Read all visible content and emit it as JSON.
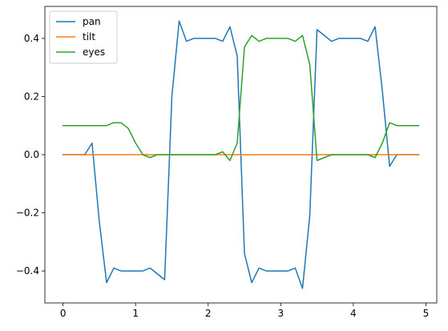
{
  "chart_data": {
    "type": "line",
    "title": "",
    "xlabel": "",
    "ylabel": "",
    "xlim": [
      -0.25,
      5.15
    ],
    "ylim": [
      -0.51,
      0.51
    ],
    "grid": false,
    "legend_position": "top-left",
    "x_ticks": [
      0,
      1,
      2,
      3,
      4,
      5
    ],
    "x_tick_labels": [
      "0",
      "1",
      "2",
      "3",
      "4",
      "5"
    ],
    "y_ticks": [
      -0.4,
      -0.2,
      0.0,
      0.2,
      0.4
    ],
    "y_tick_labels": [
      "−0.4",
      "−0.2",
      "0.0",
      "0.2",
      "0.4"
    ],
    "x": [
      0.0,
      0.1,
      0.2,
      0.3,
      0.4,
      0.5,
      0.6,
      0.7,
      0.8,
      0.9,
      1.0,
      1.1,
      1.2,
      1.3,
      1.4,
      1.5,
      1.6,
      1.7,
      1.8,
      1.9,
      2.0,
      2.1,
      2.2,
      2.3,
      2.4,
      2.5,
      2.6,
      2.7,
      2.8,
      2.9,
      3.0,
      3.1,
      3.2,
      3.3,
      3.4,
      3.5,
      3.6,
      3.7,
      3.8,
      3.9,
      4.0,
      4.1,
      4.2,
      4.3,
      4.4,
      4.5,
      4.6,
      4.7,
      4.8,
      4.9
    ],
    "series": [
      {
        "name": "pan",
        "color": "#1f77b4",
        "values": [
          0.0,
          0.0,
          0.0,
          0.0,
          0.04,
          -0.23,
          -0.44,
          -0.39,
          -0.4,
          -0.4,
          -0.4,
          -0.4,
          -0.39,
          -0.41,
          -0.43,
          0.2,
          0.46,
          0.39,
          0.4,
          0.4,
          0.4,
          0.4,
          0.39,
          0.44,
          0.34,
          -0.34,
          -0.44,
          -0.39,
          -0.4,
          -0.4,
          -0.4,
          -0.4,
          -0.39,
          -0.46,
          -0.21,
          0.43,
          0.41,
          0.39,
          0.4,
          0.4,
          0.4,
          0.4,
          0.39,
          0.44,
          0.22,
          -0.04,
          0.0,
          0.0,
          0.0,
          0.0
        ]
      },
      {
        "name": "tilt",
        "color": "#ff7f0e",
        "values": [
          0.0,
          0.0,
          0.0,
          0.0,
          0.0,
          0.0,
          0.0,
          0.0,
          0.0,
          0.0,
          0.0,
          0.0,
          0.0,
          0.0,
          0.0,
          0.0,
          0.0,
          0.0,
          0.0,
          0.0,
          0.0,
          0.0,
          0.0,
          0.0,
          0.0,
          0.0,
          0.0,
          0.0,
          0.0,
          0.0,
          0.0,
          0.0,
          0.0,
          0.0,
          0.0,
          0.0,
          0.0,
          0.0,
          0.0,
          0.0,
          0.0,
          0.0,
          0.0,
          0.0,
          0.0,
          0.0,
          0.0,
          0.0,
          0.0,
          0.0
        ]
      },
      {
        "name": "eyes",
        "color": "#2ca02c",
        "values": [
          0.1,
          0.1,
          0.1,
          0.1,
          0.1,
          0.1,
          0.1,
          0.11,
          0.11,
          0.09,
          0.04,
          0.0,
          -0.01,
          0.0,
          0.0,
          0.0,
          0.0,
          0.0,
          0.0,
          0.0,
          0.0,
          0.0,
          0.01,
          -0.02,
          0.04,
          0.37,
          0.41,
          0.39,
          0.4,
          0.4,
          0.4,
          0.4,
          0.39,
          0.41,
          0.31,
          -0.02,
          -0.01,
          0.0,
          0.0,
          0.0,
          0.0,
          0.0,
          0.0,
          -0.01,
          0.04,
          0.11,
          0.1,
          0.1,
          0.1,
          0.1
        ]
      }
    ]
  }
}
